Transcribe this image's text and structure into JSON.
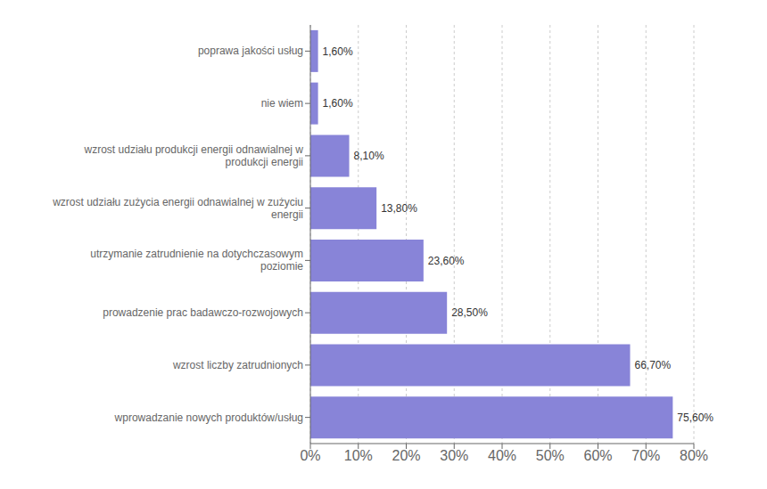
{
  "chart_data": {
    "type": "bar",
    "orientation": "horizontal",
    "categories": [
      "wprowadzanie nowych produktów/usług",
      "wzrost liczby zatrudnionych",
      "prowadzenie prac badawczo-rozwojowych",
      "utrzymanie zatrudnienie na dotychczasowym\npoziomie",
      "wzrost udziału zużycia energii odnawialnej w zużyciu\nenergii",
      "wzrost udziału produkcji energii odnawialnej w\nprodukcji energii",
      "nie wiem",
      "poprawa jakości usług"
    ],
    "values": [
      75.6,
      66.7,
      28.5,
      23.6,
      13.8,
      8.1,
      1.6,
      1.6
    ],
    "value_labels": [
      "75,60%",
      "66,70%",
      "28,50%",
      "23,60%",
      "13,80%",
      "8,10%",
      "1,60%",
      "1,60%"
    ],
    "data_labels": true,
    "color": "#8884d8",
    "xlim": [
      0,
      80
    ],
    "xticks": [
      {
        "value": 0,
        "label": "0%"
      },
      {
        "value": 10,
        "label": "10%"
      },
      {
        "value": 20,
        "label": "20%"
      },
      {
        "value": 30,
        "label": "30%"
      },
      {
        "value": 40,
        "label": "40%"
      },
      {
        "value": 50,
        "label": "50%"
      },
      {
        "value": 60,
        "label": "60%"
      },
      {
        "value": 70,
        "label": "70%"
      },
      {
        "value": 80,
        "label": "80%"
      }
    ],
    "grid": true
  }
}
